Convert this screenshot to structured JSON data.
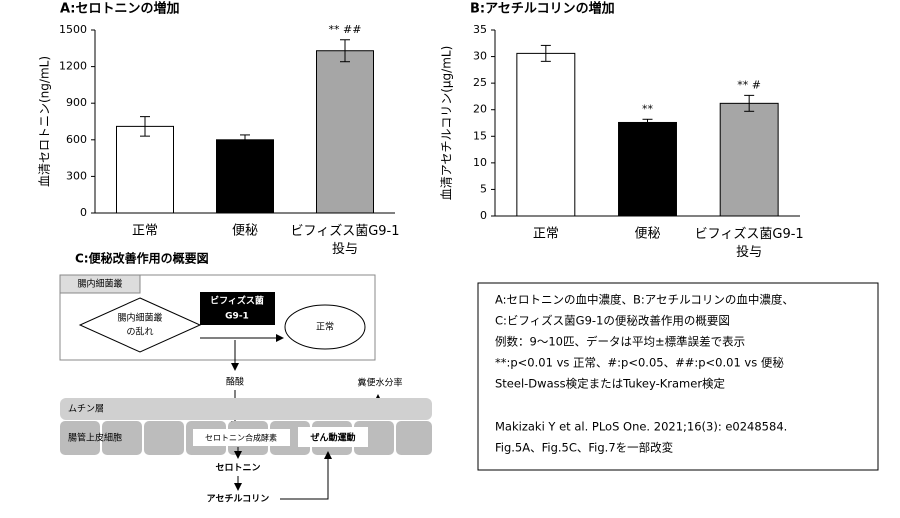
{
  "chart_data": [
    {
      "type": "bar",
      "title": "A:セロトニンの増加",
      "ylabel": "血清セロトニン(ng/mL)",
      "categories": [
        "正常",
        "便秘",
        "ビフィズス菌G9-1\n投与"
      ],
      "values": [
        710,
        600,
        1330
      ],
      "errors": [
        80,
        40,
        90
      ],
      "colors": [
        "#ffffff",
        "#000000",
        "#a6a6a6"
      ],
      "annotations": [
        null,
        null,
        "** ##"
      ],
      "ylim": [
        0,
        1500
      ],
      "yticks": [
        0,
        300,
        600,
        900,
        1200,
        1500
      ]
    },
    {
      "type": "bar",
      "title": "B:アセチルコリンの増加",
      "ylabel": "血清アセチルコリン(μg/mL)",
      "categories": [
        "正常",
        "便秘",
        "ビフィズス菌G9-1\n投与"
      ],
      "values": [
        30.6,
        17.6,
        21.2
      ],
      "errors": [
        1.5,
        0.6,
        1.5
      ],
      "colors": [
        "#ffffff",
        "#000000",
        "#a6a6a6"
      ],
      "annotations": [
        null,
        "**",
        "** #"
      ],
      "ylim": [
        0,
        35
      ],
      "yticks": [
        0,
        5,
        10,
        15,
        20,
        25,
        30,
        35
      ]
    }
  ],
  "diagram": {
    "title": "C:便秘改善作用の概要図",
    "flora": "腸内細菌叢",
    "disorder": [
      "腸内細菌叢",
      "の乱れ"
    ],
    "probiotic": [
      "ビフィズス菌",
      "G9-1"
    ],
    "normal": "正常",
    "butyrate": "酪酸",
    "fecal_water": "糞便水分率",
    "mucin": "ムチン層",
    "epithelium": "腸管上皮細胞",
    "enzyme": "セロトニン合成酵素",
    "peristalsis": "ぜん動運動",
    "serotonin": "セロトニン",
    "acetylcholine": "アセチルコリン"
  },
  "caption": {
    "lines": [
      "A:セロトニンの血中濃度、B:アセチルコリンの血中濃度、",
      "C:ビフィズス菌G9-1の便秘改善作用の概要図",
      "例数：9～10匹、データは平均±標準誤差で表示",
      "**:p<0.01 vs 正常、#:p<0.05、##:p<0.01 vs 便秘",
      "Steel-Dwass検定またはTukey-Kramer検定"
    ],
    "reference": [
      "Makizaki Y et al. PLoS One. 2021;16(3): e0248584.",
      "Fig.5A、Fig.5C、Fig.7を一部改変"
    ]
  }
}
